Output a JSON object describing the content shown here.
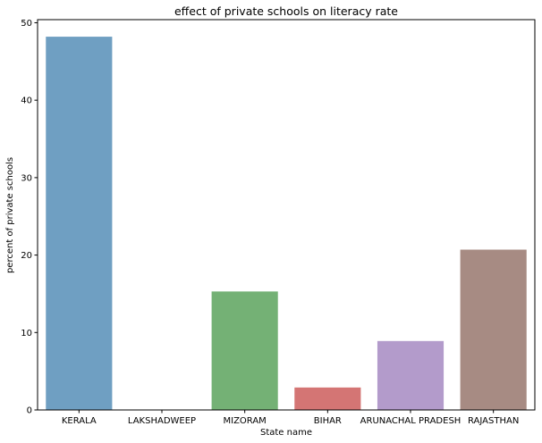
{
  "chart_data": {
    "type": "bar",
    "title": "effect of private schools on literacy rate",
    "xlabel": "State name",
    "ylabel": "percent of private schools",
    "categories": [
      "KERALA",
      "LAKSHADWEEP",
      "MIZORAM",
      "BIHAR",
      "ARUNACHAL PRADESH",
      "RAJASTHAN"
    ],
    "values": [
      48.2,
      0,
      15.3,
      2.9,
      8.9,
      20.7
    ],
    "colors": [
      "#6f9fc2",
      "#e08a5e",
      "#74b175",
      "#d47574",
      "#b39bcb",
      "#a78b83"
    ],
    "ylim": [
      0,
      50.4
    ],
    "yticks": [
      0,
      10,
      20,
      30,
      40,
      50
    ],
    "grid": false,
    "legend": "none"
  }
}
